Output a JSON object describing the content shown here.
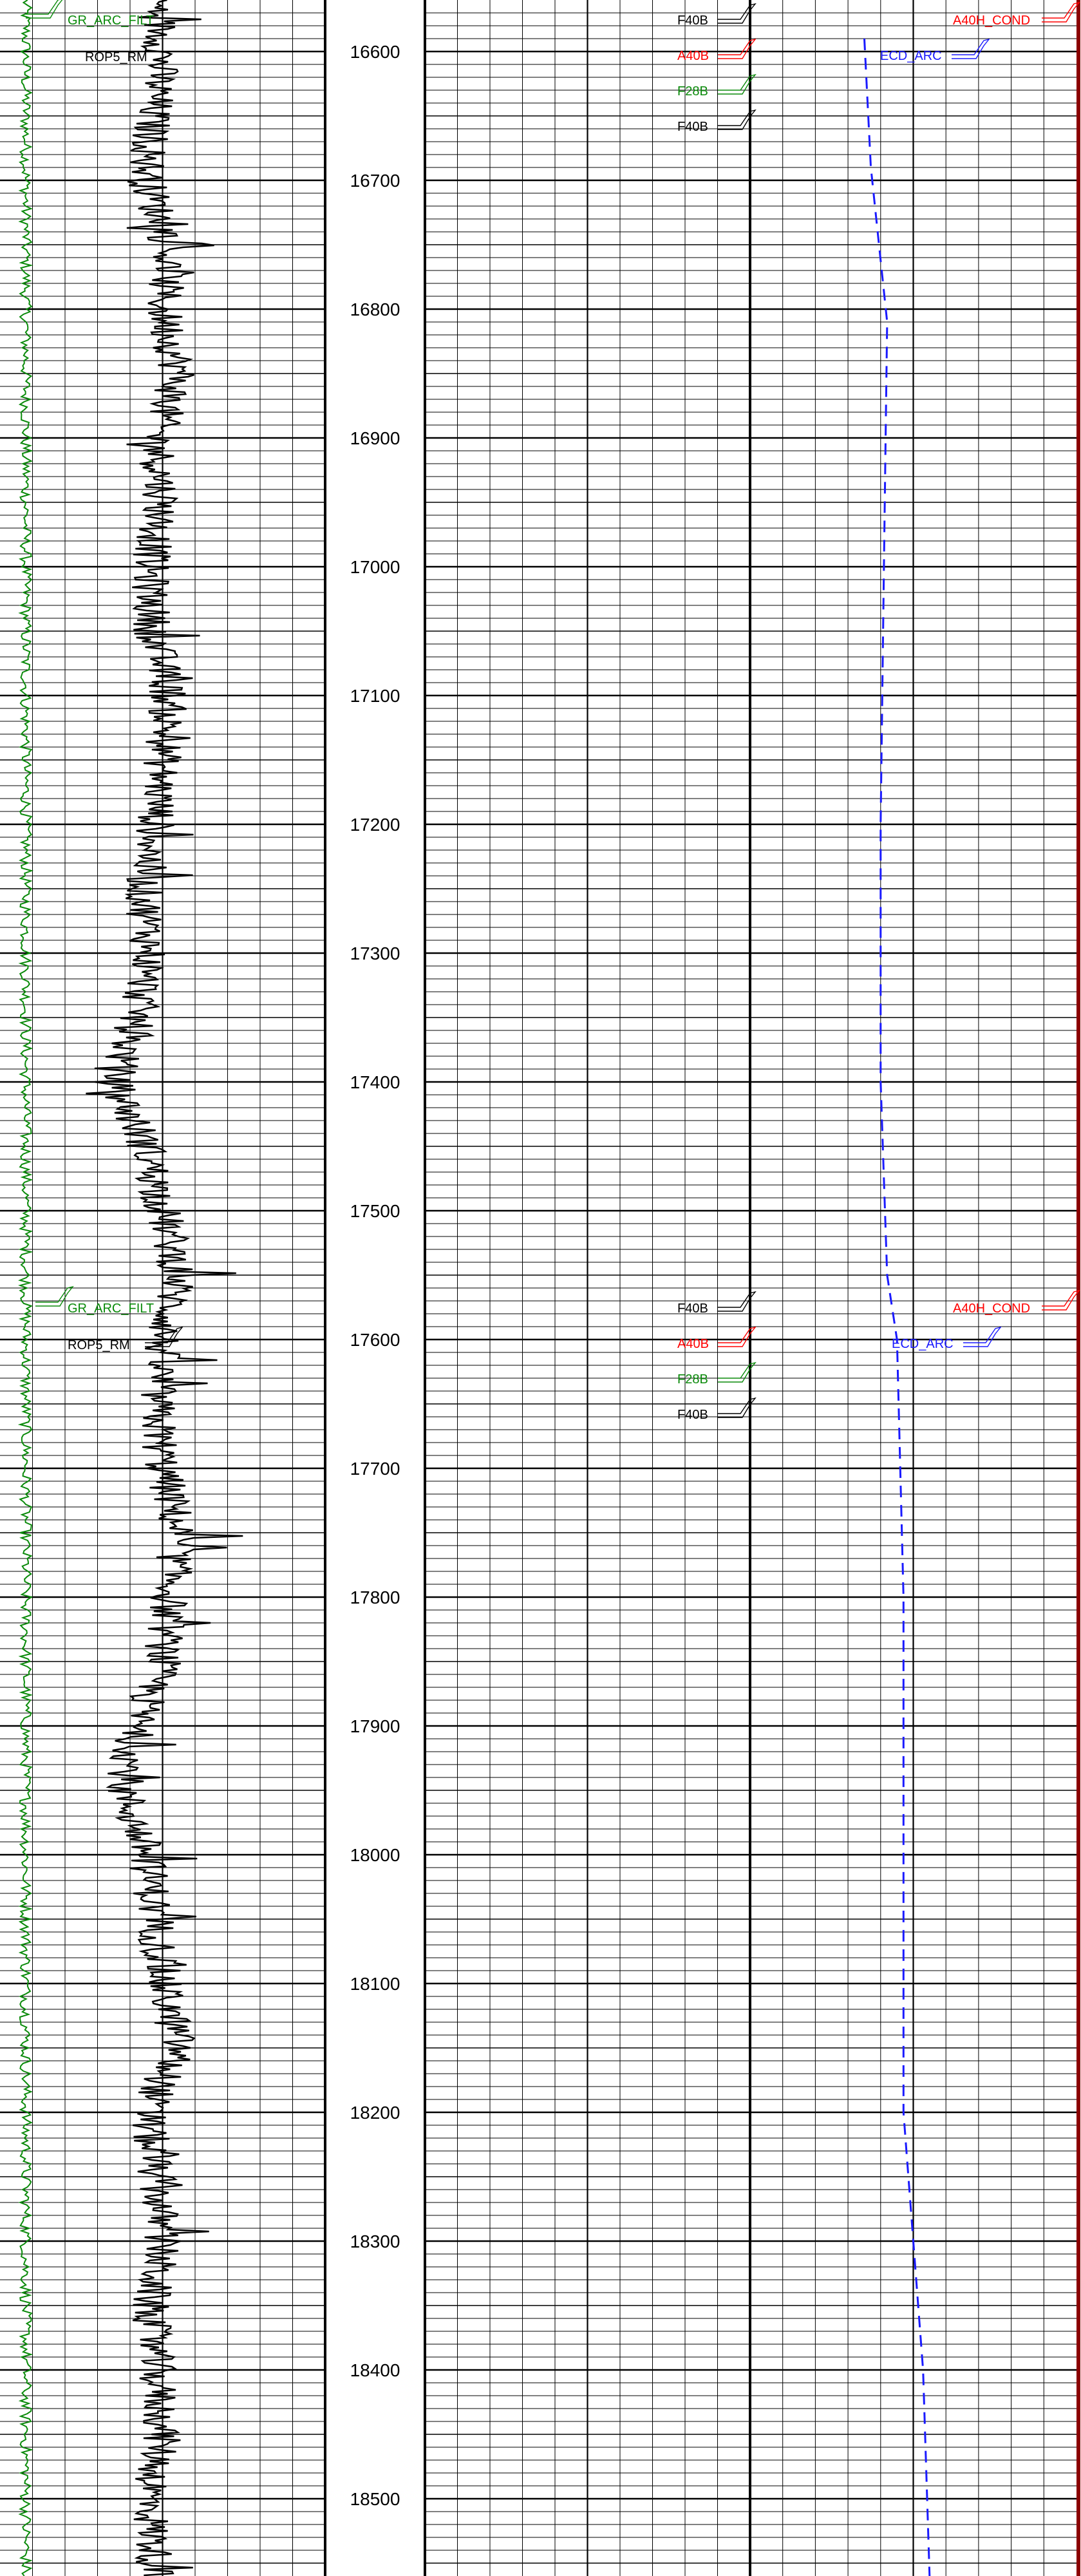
{
  "depth_axis": {
    "labels": [
      "16600",
      "16700",
      "16800",
      "16900",
      "17000",
      "17100",
      "17200",
      "17300",
      "17400",
      "17500",
      "17600",
      "17700",
      "17800",
      "17900",
      "18000",
      "18100",
      "18200",
      "18300",
      "18400",
      "18500"
    ]
  },
  "colors": {
    "gr": "#0a8a0a",
    "rop": "#000000",
    "ecd": "#1a1aff",
    "cond": "#ff0000",
    "f40b": "#000000",
    "a40b": "#ff0000",
    "f28b": "#0a8a0a",
    "edge": "#8b0000"
  },
  "curve_labels": {
    "gr": "GR_ARC_FILT",
    "rop": "ROP5_RM",
    "ecd": "ECD_ARC",
    "cond": "A40H_COND",
    "f40b": "F40B",
    "a40b": "A40B",
    "f28b": "F28B"
  },
  "chart_data": {
    "type": "line",
    "y_axis": {
      "label": "",
      "range": [
        16560,
        18560
      ]
    },
    "series": [
      {
        "name": "GR_ARC_FILT",
        "depth": [
          16560,
          16650,
          16750,
          16850,
          16950,
          17050,
          17150,
          17250,
          17350,
          17450,
          17550,
          17650,
          17750,
          17850,
          17950,
          18050,
          18150,
          18250,
          18350,
          18450,
          18560
        ],
        "values": [
          0.2,
          0.2,
          0.2,
          0.2,
          0.2,
          0.2,
          0.2,
          0.2,
          0.2,
          0.2,
          0.2,
          0.2,
          0.2,
          0.2,
          0.2,
          0.2,
          0.2,
          0.2,
          0.2,
          0.2,
          0.2
        ]
      },
      {
        "name": "ROP5_RM",
        "depth": [
          16560,
          16600,
          16650,
          16700,
          16750,
          16800,
          16850,
          16900,
          16950,
          17000,
          17050,
          17100,
          17150,
          17200,
          17250,
          17300,
          17350,
          17400,
          17450,
          17500,
          17550,
          17600,
          17650,
          17700,
          17750,
          17800,
          17850,
          17900,
          17950,
          18000,
          18050,
          18100,
          18150,
          18200,
          18250,
          18300,
          18350,
          18400,
          18450,
          18500,
          18560
        ],
        "values": [
          0.48,
          0.5,
          0.47,
          0.45,
          0.52,
          0.5,
          0.55,
          0.48,
          0.5,
          0.46,
          0.47,
          0.52,
          0.5,
          0.48,
          0.44,
          0.46,
          0.42,
          0.35,
          0.45,
          0.5,
          0.55,
          0.5,
          0.48,
          0.5,
          0.55,
          0.52,
          0.5,
          0.42,
          0.38,
          0.45,
          0.48,
          0.5,
          0.55,
          0.45,
          0.48,
          0.5,
          0.46,
          0.48,
          0.5,
          0.46,
          0.48
        ]
      },
      {
        "name": "ECD_ARC",
        "depth": [
          16590,
          16690,
          16810,
          17000,
          17200,
          17400,
          17550,
          17600,
          17800,
          18000,
          18200,
          18400,
          18560
        ],
        "values": [
          0.35,
          0.37,
          0.42,
          0.41,
          0.4,
          0.4,
          0.42,
          0.45,
          0.47,
          0.47,
          0.47,
          0.53,
          0.55
        ]
      }
    ],
    "grid": true
  }
}
